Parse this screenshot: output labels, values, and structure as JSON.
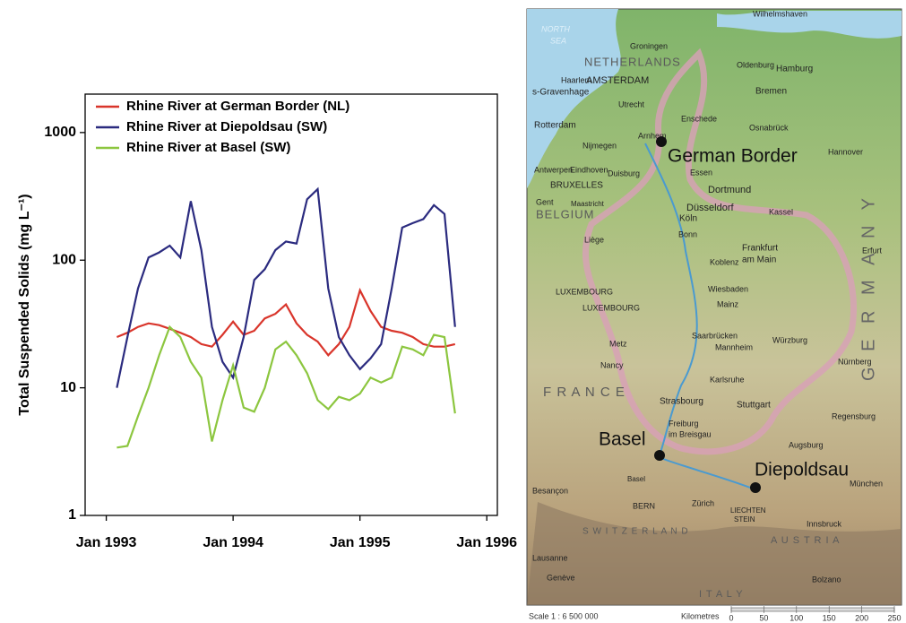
{
  "chart_data": {
    "type": "line",
    "y_label": "Total Suspended Solids (mg L⁻¹)",
    "log_y": true,
    "legend": "upper left",
    "xlim": [
      "1992-11",
      "1996-02"
    ],
    "xticks": [
      {
        "value": "1993-01",
        "label": "Jan 1993"
      },
      {
        "value": "1994-01",
        "label": "Jan 1994"
      },
      {
        "value": "1995-01",
        "label": "Jan 1995"
      },
      {
        "value": "1996-01",
        "label": "Jan 1996"
      }
    ],
    "ylim": [
      1,
      2000
    ],
    "yticks": [
      1,
      10,
      100,
      1000
    ],
    "x": [
      "1993-02",
      "1993-03",
      "1993-04",
      "1993-05",
      "1993-06",
      "1993-07",
      "1993-08",
      "1993-09",
      "1993-10",
      "1993-11",
      "1993-12",
      "1994-01",
      "1994-02",
      "1994-03",
      "1994-04",
      "1994-05",
      "1994-06",
      "1994-07",
      "1994-08",
      "1994-09",
      "1994-10",
      "1994-11",
      "1994-12",
      "1995-01",
      "1995-02",
      "1995-03",
      "1995-04",
      "1995-05",
      "1995-06",
      "1995-07",
      "1995-08",
      "1995-09",
      "1995-10"
    ],
    "series": [
      {
        "name": "Rhine River at German Border (NL)",
        "color": "#d9352b",
        "values": [
          25,
          27,
          30,
          32,
          31,
          29,
          27,
          25,
          22,
          21,
          26,
          33,
          26,
          28,
          35,
          38,
          45,
          32,
          26,
          23,
          18,
          22,
          30,
          58,
          40,
          30,
          28,
          27,
          25,
          22,
          21,
          21,
          22
        ]
      },
      {
        "name": "Rhine River at Diepoldsau (SW)",
        "color": "#2b2b7f",
        "values": [
          10,
          25,
          60,
          105,
          115,
          130,
          105,
          290,
          120,
          30,
          16,
          12,
          25,
          70,
          85,
          120,
          140,
          135,
          300,
          360,
          60,
          25,
          18,
          14,
          17,
          22,
          60,
          180,
          195,
          210,
          270,
          230,
          30
        ]
      },
      {
        "name": "Rhine River at Basel (SW)",
        "color": "#8cc63f",
        "values": [
          3.4,
          3.5,
          6,
          10,
          18,
          30,
          25,
          16,
          12,
          3.8,
          8,
          15,
          7,
          6.5,
          10,
          20,
          23,
          18,
          13,
          8,
          6.8,
          8.5,
          8,
          9,
          12,
          11,
          12,
          21,
          20,
          18,
          26,
          25,
          6.3
        ]
      }
    ]
  },
  "map": {
    "sites": [
      "German Border",
      "Basel",
      "Diepoldsau"
    ],
    "labels": [
      "NORTH",
      "SEA",
      "Groningen",
      "Wilhelmshaven",
      "NETHERLANDS",
      "Oldenburg",
      "Hamburg",
      "Haarlem",
      "AMSTERDAM",
      "s-Gravenhage",
      "Bremen",
      "Utrecht",
      "Rotterdam",
      "Osnabrück",
      "Enschede",
      "Nijmegen",
      "Arnhem",
      "Hannover",
      "Antwerpen",
      "Eindhoven",
      "Duisburg",
      "Essen",
      "Dortmund",
      "Gent",
      "BRUXELLES",
      "Maastricht",
      "Düsseldorf",
      "BELGIUM",
      "Köln",
      "Kassel",
      "Bonn",
      "Liège",
      "Erfurt",
      "Koblenz",
      "Frankfurt",
      "am Main",
      "LUXEMBOURG",
      "LUXEMBOURG",
      "Wiesbaden",
      "Mainz",
      "Saarbrücken",
      "Mannheim",
      "Würzburg",
      "Metz",
      "Nancy",
      "Nürnberg",
      "Karlsruhe",
      "F R A N C E",
      "Strasbourg",
      "Stuttgart",
      "Regensburg",
      "Freiburg",
      "im Breisgau",
      "Augsburg",
      "Besançon",
      "Basel",
      "München",
      "Zürich",
      "BERN",
      "LIECHTEN",
      "STEIN",
      "S W I T Z E R L A N D",
      "Innsbruck",
      "Lausanne",
      "Genève",
      "Bolzano",
      "A U S T R I A",
      "I T A L Y",
      "G E R M A N Y"
    ],
    "scale": "Scale 1 : 6 500 000",
    "scale_unit": "Kilometres",
    "scale_ticks": [
      0,
      50,
      100,
      150,
      200,
      250
    ]
  }
}
